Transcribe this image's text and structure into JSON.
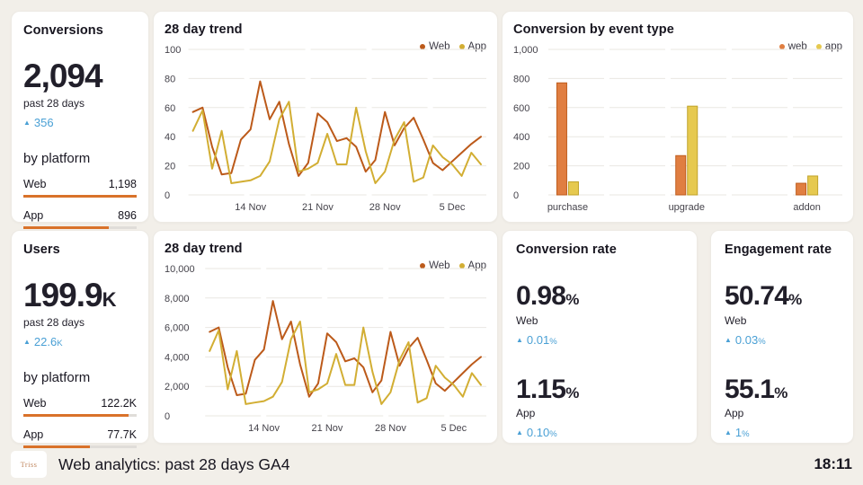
{
  "page": {
    "footer_title": "Web analytics: past 28 days GA4",
    "logo_text": "Triss",
    "time": "18:11"
  },
  "colors": {
    "web_line": "#bc5a1a",
    "app_line": "#d2ae33",
    "web_bar_fill": "#e07e41",
    "web_bar_border": "#bf5c1d",
    "app_bar_fill": "#e6c94f",
    "app_bar_border": "#c0a32b",
    "platform_bar": "#d9722a",
    "delta_blue": "#4aa0d5",
    "background": "#f2efe9",
    "card": "#ffffff"
  },
  "cards": {
    "conversions": {
      "title": "Conversions",
      "value": "2,094",
      "unit": "",
      "period": "past 28 days",
      "delta": "356",
      "delta_unit": "",
      "by_platform_label": "by platform",
      "platforms": [
        {
          "label": "Web",
          "value": "1,198",
          "pct": 100
        },
        {
          "label": "App",
          "value": "896",
          "pct": 75
        }
      ]
    },
    "users": {
      "title": "Users",
      "value": "199.9",
      "unit": "K",
      "period": "past 28 days",
      "delta": "22.6",
      "delta_unit": "K",
      "by_platform_label": "by platform",
      "platforms": [
        {
          "label": "Web",
          "value": "122.2K",
          "pct": 93
        },
        {
          "label": "App",
          "value": "77.7K",
          "pct": 59
        }
      ]
    },
    "conversion_rate": {
      "title": "Conversion rate",
      "stats": [
        {
          "value": "0.98",
          "unit": "%",
          "label": "Web",
          "delta": "0.01",
          "delta_unit": "%"
        },
        {
          "value": "1.15",
          "unit": "%",
          "label": "App",
          "delta": "0.10",
          "delta_unit": "%"
        }
      ]
    },
    "engagement_rate": {
      "title": "Engagement rate",
      "stats": [
        {
          "value": "50.74",
          "unit": "%",
          "label": "Web",
          "delta": "0.03",
          "delta_unit": "%"
        },
        {
          "value": "55.1",
          "unit": "%",
          "label": "App",
          "delta": "1",
          "delta_unit": "%"
        }
      ]
    }
  },
  "chart_data": [
    {
      "type": "line",
      "title": "28 day trend",
      "ylim": [
        0,
        100
      ],
      "yticks": [
        0,
        20,
        40,
        60,
        80,
        100
      ],
      "ytick_labels": [
        "0",
        "20",
        "40",
        "60",
        "80",
        "100"
      ],
      "x_tick_labels": [
        "14 Nov",
        "21 Nov",
        "28 Nov",
        "5 Dec"
      ],
      "x_tick_indices": [
        6,
        13,
        20,
        27
      ],
      "grid": true,
      "legend_position": "top-right",
      "series": [
        {
          "name": "Web",
          "color": "#bc5a1a",
          "values": [
            57,
            60,
            33,
            14,
            15,
            38,
            45,
            78,
            52,
            64,
            35,
            13,
            22,
            56,
            50,
            37,
            39,
            33,
            16,
            24,
            57,
            34,
            46,
            53,
            38,
            22,
            17,
            23,
            29,
            35,
            40
          ]
        },
        {
          "name": "App",
          "color": "#d2ae33",
          "values": [
            44,
            58,
            18,
            44,
            8,
            9,
            10,
            13,
            23,
            52,
            64,
            16,
            18,
            22,
            42,
            21,
            21,
            60,
            30,
            8,
            16,
            38,
            50,
            9,
            12,
            34,
            26,
            21,
            13,
            29,
            21
          ]
        }
      ]
    },
    {
      "type": "bar",
      "title": "Conversion by event type",
      "categories": [
        "purchase",
        "upgrade",
        "addon"
      ],
      "category_pos": [
        0.03,
        0.45,
        0.875
      ],
      "ylim": [
        0,
        1000
      ],
      "yticks": [
        0,
        200,
        400,
        600,
        800,
        1000
      ],
      "ytick_labels": [
        "0",
        "200",
        "400",
        "600",
        "800",
        "1,000"
      ],
      "grid": true,
      "legend_position": "top-right",
      "series": [
        {
          "name": "web",
          "color_fill": "#e07e41",
          "color_border": "#bf5c1d",
          "values": [
            770,
            270,
            80
          ]
        },
        {
          "name": "app",
          "color_fill": "#e6c94f",
          "color_border": "#c0a32b",
          "values": [
            90,
            610,
            130
          ]
        }
      ]
    },
    {
      "type": "line",
      "title": "28 day trend",
      "ylim": [
        0,
        10000
      ],
      "yticks": [
        0,
        2000,
        4000,
        6000,
        8000,
        10000
      ],
      "ytick_labels": [
        "0",
        "2,000",
        "4,000",
        "6,000",
        "8,000",
        "10,000"
      ],
      "x_tick_labels": [
        "14 Nov",
        "21 Nov",
        "28 Nov",
        "5 Dec"
      ],
      "x_tick_indices": [
        6,
        13,
        20,
        27
      ],
      "grid": true,
      "legend_position": "top-right",
      "series": [
        {
          "name": "Web",
          "color": "#bc5a1a",
          "values": [
            5700,
            6000,
            3300,
            1400,
            1500,
            3800,
            4500,
            7800,
            5200,
            6400,
            3500,
            1300,
            2200,
            5600,
            5000,
            3700,
            3900,
            3300,
            1600,
            2400,
            5700,
            3400,
            4600,
            5300,
            3800,
            2200,
            1700,
            2300,
            2900,
            3500,
            4000
          ]
        },
        {
          "name": "App",
          "color": "#d2ae33",
          "values": [
            4400,
            5800,
            1800,
            4400,
            800,
            900,
            1000,
            1300,
            2300,
            5200,
            6400,
            1600,
            1800,
            2200,
            4200,
            2100,
            2100,
            6000,
            3000,
            800,
            1600,
            3800,
            5000,
            900,
            1200,
            3400,
            2600,
            2100,
            1300,
            2900,
            2100
          ]
        }
      ]
    }
  ]
}
